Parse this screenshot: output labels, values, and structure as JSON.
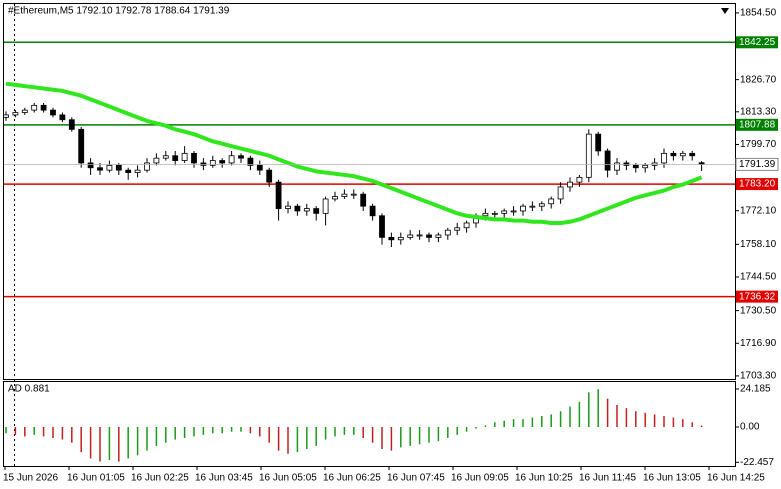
{
  "chart_data": [
    {
      "type": "candlestick",
      "title": "#Ethereum,M5  1792.10 1792.78 1788.64 1791.39",
      "ylim": [
        1701.6,
        1858.2
      ],
      "yticks": [
        {
          "value": 1854.5,
          "label": "1854.50"
        },
        {
          "value": 1826.7,
          "label": "1826.70"
        },
        {
          "value": 1813.3,
          "label": "1813.30"
        },
        {
          "value": 1799.7,
          "label": "1799.70"
        },
        {
          "value": 1772.1,
          "label": "1772.10"
        },
        {
          "value": 1758.1,
          "label": "1758.10"
        },
        {
          "value": 1744.5,
          "label": "1744.50"
        },
        {
          "value": 1730.5,
          "label": "1730.50"
        },
        {
          "value": 1716.9,
          "label": "1716.90"
        },
        {
          "value": 1703.3,
          "label": "1703.30"
        }
      ],
      "open": [
        1811,
        1812,
        1813,
        1814,
        1816,
        1814,
        1812,
        1810,
        1806,
        1792,
        1790,
        1789,
        1791,
        1789,
        1788,
        1789,
        1792,
        1794,
        1795,
        1793,
        1796,
        1792,
        1791,
        1793,
        1792,
        1795,
        1794,
        1791,
        1789,
        1784,
        1773,
        1774,
        1772,
        1773,
        1771,
        1777,
        1778,
        1779,
        1779,
        1774,
        1770,
        1761,
        1760,
        1761,
        1762,
        1762,
        1761,
        1762,
        1764,
        1765,
        1767,
        1770,
        1771,
        1771,
        1772,
        1772,
        1774,
        1774,
        1775,
        1777,
        1782,
        1784,
        1786,
        1804,
        1797,
        1789,
        1792,
        1791,
        1790,
        1791,
        1792,
        1796,
        1795,
        1796,
        1792.1
      ],
      "high": [
        1813.5,
        1814,
        1815,
        1817,
        1817,
        1815,
        1813,
        1811,
        1807,
        1794,
        1792,
        1793,
        1792,
        1790,
        1791,
        1794,
        1796,
        1797,
        1797,
        1799,
        1797,
        1794,
        1795,
        1794,
        1797,
        1796,
        1795,
        1793,
        1790,
        1785,
        1776,
        1775,
        1775,
        1774,
        1778,
        1780,
        1781,
        1781,
        1780,
        1775,
        1771,
        1763,
        1763,
        1764,
        1764,
        1763,
        1763,
        1765,
        1767,
        1768,
        1771,
        1773,
        1772,
        1773,
        1774,
        1775,
        1776,
        1776,
        1778,
        1784,
        1786,
        1787,
        1806,
        1805,
        1798,
        1794,
        1793,
        1792,
        1792,
        1794,
        1798,
        1797,
        1797,
        1797,
        1792.78
      ],
      "low": [
        1809.5,
        1811,
        1812,
        1813,
        1813,
        1811,
        1809,
        1805,
        1790,
        1787,
        1787,
        1788,
        1787,
        1785,
        1786,
        1788,
        1791,
        1793,
        1791,
        1792,
        1790,
        1789,
        1790,
        1790,
        1791,
        1792,
        1789,
        1787,
        1782,
        1768,
        1771,
        1770,
        1770,
        1768,
        1766,
        1776,
        1777,
        1777,
        1772,
        1768,
        1758,
        1757,
        1758,
        1760,
        1760,
        1759,
        1759,
        1760,
        1762,
        1763,
        1765,
        1768,
        1769,
        1769,
        1770,
        1770,
        1772,
        1772,
        1773,
        1775,
        1780,
        1782,
        1784,
        1795,
        1786,
        1787,
        1789,
        1788,
        1788,
        1789,
        1790,
        1793,
        1793,
        1793,
        1788.64
      ],
      "close": [
        1812,
        1813,
        1814,
        1816,
        1814,
        1812,
        1810,
        1806,
        1792,
        1790,
        1789,
        1791,
        1789,
        1788,
        1789,
        1792,
        1794,
        1795,
        1793,
        1796,
        1792,
        1791,
        1793,
        1792,
        1795,
        1794,
        1791,
        1789,
        1784,
        1773,
        1774,
        1772,
        1773,
        1771,
        1777,
        1778,
        1779,
        1779,
        1774,
        1770,
        1761,
        1760,
        1761,
        1762,
        1762,
        1761,
        1762,
        1764,
        1765,
        1767,
        1770,
        1771,
        1771,
        1772,
        1772,
        1774,
        1774,
        1775,
        1777,
        1782,
        1784,
        1786,
        1804,
        1797,
        1789,
        1792,
        1791,
        1790,
        1791,
        1792,
        1796,
        1795,
        1796,
        1795,
        1791.39
      ],
      "up_color": "#ffffff",
      "down_color": "#000000",
      "candle_outline": "#000000",
      "ma": {
        "color": "#32e61e",
        "values": [
          1825,
          1824.5,
          1824,
          1823.5,
          1823,
          1822.5,
          1822,
          1821,
          1820,
          1818.5,
          1817,
          1815.5,
          1814,
          1812.5,
          1811,
          1809.5,
          1808.5,
          1807.5,
          1806,
          1805,
          1804,
          1802.5,
          1801,
          1800,
          1799,
          1798,
          1797,
          1796,
          1795,
          1793.5,
          1792,
          1790.5,
          1789.5,
          1788.5,
          1788,
          1787.5,
          1787,
          1786.5,
          1785.5,
          1784.5,
          1783,
          1781.5,
          1780,
          1778.5,
          1777,
          1775.5,
          1774,
          1772.5,
          1771,
          1770,
          1769.5,
          1769,
          1768.5,
          1768.5,
          1768,
          1768,
          1767.5,
          1767.5,
          1767,
          1767,
          1767.5,
          1768.5,
          1770,
          1771.5,
          1773,
          1774.5,
          1776,
          1777.5,
          1778.5,
          1779.5,
          1780.5,
          1782,
          1783,
          1784.5,
          1786
        ]
      },
      "levels": [
        {
          "value": 1842.25,
          "label": "1842.25",
          "color": "#008000"
        },
        {
          "value": 1807.88,
          "label": "1807.88",
          "color": "#008000"
        },
        {
          "value": 1783.2,
          "label": "1783.20",
          "color": "#e00000"
        },
        {
          "value": 1736.32,
          "label": "1736.32",
          "color": "#e00000"
        }
      ],
      "last_price": {
        "value": 1791.39,
        "label": "1791.39"
      }
    },
    {
      "type": "histogram",
      "title": "AD 0.881",
      "ylim": [
        -24.8,
        28.6
      ],
      "yticks": [
        24.185,
        {
          "value": 0,
          "label": "0.00"
        },
        -22.457
      ],
      "values": [
        -4,
        -5,
        -6,
        -5,
        -6,
        -7,
        -8,
        -10,
        -16,
        -20,
        -22,
        -21,
        -22,
        -20,
        -18,
        -15,
        -12,
        -10,
        -8,
        -7,
        -6,
        -5,
        -4,
        -4,
        -3,
        -3,
        -4,
        -6,
        -10,
        -15,
        -17,
        -16,
        -14,
        -12,
        -8,
        -6,
        -5,
        -5,
        -7,
        -10,
        -14,
        -15,
        -13,
        -12,
        -11,
        -10,
        -9,
        -7,
        -5,
        -3,
        -1,
        1,
        3,
        4,
        5,
        5,
        6,
        7,
        8,
        10,
        13,
        16,
        22,
        24,
        18,
        14,
        12,
        10,
        9,
        8,
        7,
        6,
        5,
        3,
        0.881
      ],
      "up_color": "#1a9a1a",
      "down_color": "#c02020",
      "x_labels": [
        "15 Jun 2026",
        "16 Jun 01:05",
        "16 Jun 02:25",
        "16 Jun 03:45",
        "16 Jun 05:05",
        "16 Jun 06:25",
        "16 Jun 07:45",
        "16 Jun 09:05",
        "16 Jun 10:25",
        "16 Jun 11:45",
        "16 Jun 13:05",
        "16 Jun 14:25"
      ]
    }
  ]
}
